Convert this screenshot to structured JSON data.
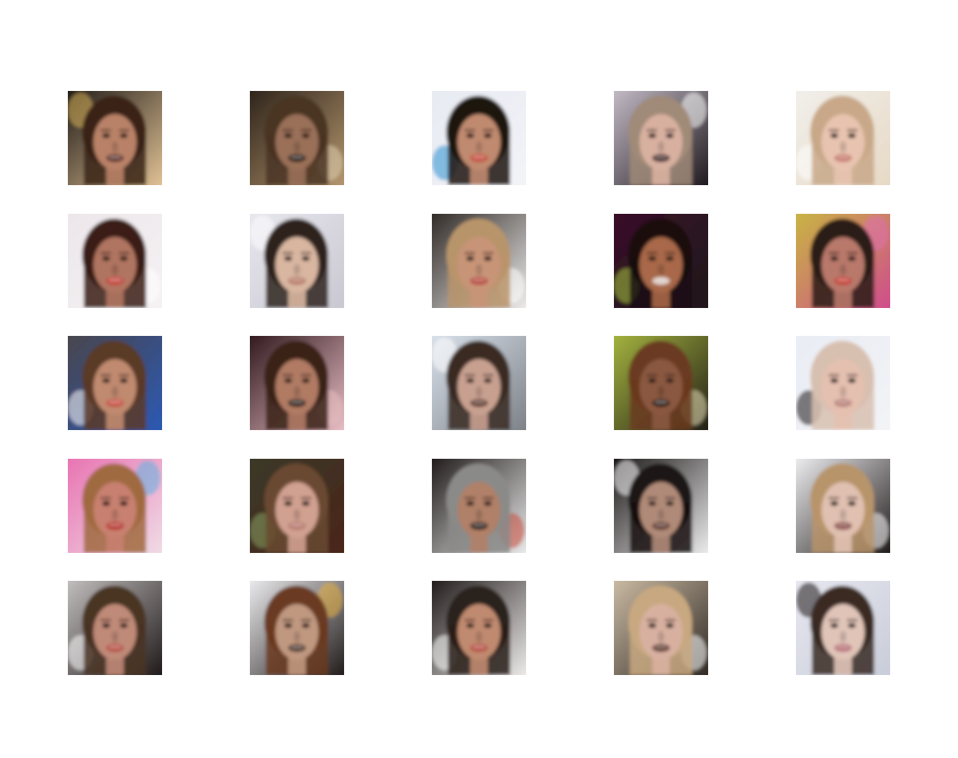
{
  "figure": {
    "rows": 5,
    "cols": 5,
    "tiles": [
      {
        "bg": [
          "#1a1614",
          "#e8c89a"
        ],
        "hair": "#3a2418",
        "skin": "#b98268",
        "mouth": "#5a2a28",
        "accent": "#d9b25a"
      },
      {
        "bg": [
          "#2a2018",
          "#b89a70"
        ],
        "hair": "#4a3424",
        "skin": "#9a7058",
        "mouth": "#1a0e0c",
        "accent": "#e0d0b0"
      },
      {
        "bg": [
          "#e6eaf2",
          "#f4f4f8"
        ],
        "hair": "#1e1410",
        "skin": "#c08a70",
        "mouth": "#c84a3a",
        "accent": "#2a90d0"
      },
      {
        "bg": [
          "#c8c0cc",
          "#1a1418"
        ],
        "hair": "#a08a78",
        "skin": "#d8b0a0",
        "mouth": "#3a1c22",
        "accent": "#ffffff"
      },
      {
        "bg": [
          "#f2f0ec",
          "#e6d8c4"
        ],
        "hair": "#c8a888",
        "skin": "#e8c4b0",
        "mouth": "#c87a70",
        "accent": "#ffffff"
      },
      {
        "bg": [
          "#ece6ea",
          "#f6f2f4"
        ],
        "hair": "#3a1c14",
        "skin": "#b07460",
        "mouth": "#c8403a",
        "accent": "#ffffff"
      },
      {
        "bg": [
          "#e8e8ee",
          "#c8c6d0"
        ],
        "hair": "#2e241e",
        "skin": "#d8b6a0",
        "mouth": "#b87868",
        "accent": "#ffffff"
      },
      {
        "bg": [
          "#2a2420",
          "#f4f2f2"
        ],
        "hair": "#b8946a",
        "skin": "#c89478",
        "mouth": "#b84038",
        "accent": "#ffffff"
      },
      {
        "bg": [
          "#3a0e28",
          "#1e1a1c"
        ],
        "hair": "#1a1010",
        "skin": "#a86848",
        "mouth": "#e0d0c8",
        "accent": "#a8c840"
      },
      {
        "bg": [
          "#c8b840",
          "#d04890"
        ],
        "hair": "#2a1c18",
        "skin": "#b8786a",
        "mouth": "#c83a30",
        "accent": "#e070b0"
      },
      {
        "bg": [
          "#4a4448",
          "#2a5ab8"
        ],
        "hair": "#5a3a28",
        "skin": "#c08a70",
        "mouth": "#c84a40",
        "accent": "#ffffff"
      },
      {
        "bg": [
          "#2a1418",
          "#f0c4cc"
        ],
        "hair": "#3a2218",
        "skin": "#b07a64",
        "mouth": "#1a0e0c",
        "accent": "#e8c0c0"
      },
      {
        "bg": [
          "#dce4ee",
          "#7a7e84"
        ],
        "hair": "#3a2a22",
        "skin": "#c8a090",
        "mouth": "#5a3028",
        "accent": "#ffffff"
      },
      {
        "bg": [
          "#a8b840",
          "#1e1a16"
        ],
        "hair": "#6a3a20",
        "skin": "#8a5840",
        "mouth": "#1a0e0c",
        "accent": "#e8e0b8"
      },
      {
        "bg": [
          "#e8ecf4",
          "#f4f4f6"
        ],
        "hair": "#d8c0b0",
        "skin": "#e4c0b0",
        "mouth": "#b8807a",
        "accent": "#1a1414"
      },
      {
        "bg": [
          "#e870b0",
          "#f0e0e8"
        ],
        "hair": "#a06a40",
        "skin": "#c88070",
        "mouth": "#b82a28",
        "accent": "#60b0e0"
      },
      {
        "bg": [
          "#3a3a2a",
          "#4a2418"
        ],
        "hair": "#6a4a30",
        "skin": "#d0a090",
        "mouth": "#b87870",
        "accent": "#88a060"
      },
      {
        "bg": [
          "#1a1414",
          "#f2f2f2"
        ],
        "hair": "#8a8a88",
        "skin": "#b08068",
        "mouth": "#1a0e0c",
        "accent": "#c84a3a"
      },
      {
        "bg": [
          "#141010",
          "#f4f4f4"
        ],
        "hair": "#1a1212",
        "skin": "#b08a78",
        "mouth": "#5a3028",
        "accent": "#ffffff"
      },
      {
        "bg": [
          "#f4f4f6",
          "#1a1414"
        ],
        "hair": "#b8946a",
        "skin": "#e0c0b0",
        "mouth": "#8a4a48",
        "accent": "#ffffff"
      },
      {
        "bg": [
          "#c8c4c4",
          "#1a1414"
        ],
        "hair": "#4a3424",
        "skin": "#c08a78",
        "mouth": "#b84a40",
        "accent": "#ffffff"
      },
      {
        "bg": [
          "#f2f2f4",
          "#1a1414"
        ],
        "hair": "#6a3a20",
        "skin": "#c09880",
        "mouth": "#4a3028",
        "accent": "#e8b040"
      },
      {
        "bg": [
          "#1a1414",
          "#f4f2f0"
        ],
        "hair": "#2a201a",
        "skin": "#c08a70",
        "mouth": "#b84a40",
        "accent": "#ffffff"
      },
      {
        "bg": [
          "#d0c0a8",
          "#2a2420"
        ],
        "hair": "#c8a880",
        "skin": "#d8b0a0",
        "mouth": "#5a3028",
        "accent": "#ffffff"
      },
      {
        "bg": [
          "#e8e8f0",
          "#c8ccd8"
        ],
        "hair": "#3a2a24",
        "skin": "#e0c4b8",
        "mouth": "#b8707a",
        "accent": "#1a1414"
      }
    ]
  }
}
